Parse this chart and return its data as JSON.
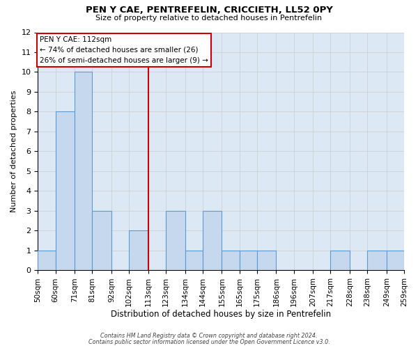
{
  "title": "PEN Y CAE, PENTREFELIN, CRICCIETH, LL52 0PY",
  "subtitle": "Size of property relative to detached houses in Pentrefelin",
  "xlabel": "Distribution of detached houses by size in Pentrefelin",
  "ylabel": "Number of detached properties",
  "bin_labels": [
    "50sqm",
    "60sqm",
    "71sqm",
    "81sqm",
    "92sqm",
    "102sqm",
    "113sqm",
    "123sqm",
    "134sqm",
    "144sqm",
    "155sqm",
    "165sqm",
    "175sqm",
    "186sqm",
    "196sqm",
    "207sqm",
    "217sqm",
    "228sqm",
    "238sqm",
    "249sqm",
    "259sqm"
  ],
  "bin_edges": [
    50,
    60,
    71,
    81,
    92,
    102,
    113,
    123,
    134,
    144,
    155,
    165,
    175,
    186,
    196,
    207,
    217,
    228,
    238,
    249,
    259
  ],
  "values": [
    1,
    8,
    10,
    3,
    0,
    2,
    0,
    3,
    1,
    3,
    1,
    1,
    1,
    0,
    0,
    0,
    1,
    0,
    1,
    1
  ],
  "bar_color": "#c5d8ed",
  "bar_edge_color": "#5b9bd5",
  "vline_x": 113,
  "vline_color": "#cc0000",
  "annotation_title": "PEN Y CAE: 112sqm",
  "annotation_line1": "← 74% of detached houses are smaller (26)",
  "annotation_line2": "26% of semi-detached houses are larger (9) →",
  "annotation_box_color": "#ffffff",
  "annotation_box_edge": "#cc0000",
  "ylim": [
    0,
    12
  ],
  "yticks": [
    0,
    1,
    2,
    3,
    4,
    5,
    6,
    7,
    8,
    9,
    10,
    11,
    12
  ],
  "grid_color": "#cccccc",
  "bg_color": "#dce9f5",
  "footer_line1": "Contains HM Land Registry data © Crown copyright and database right 2024.",
  "footer_line2": "Contains public sector information licensed under the Open Government Licence v3.0."
}
